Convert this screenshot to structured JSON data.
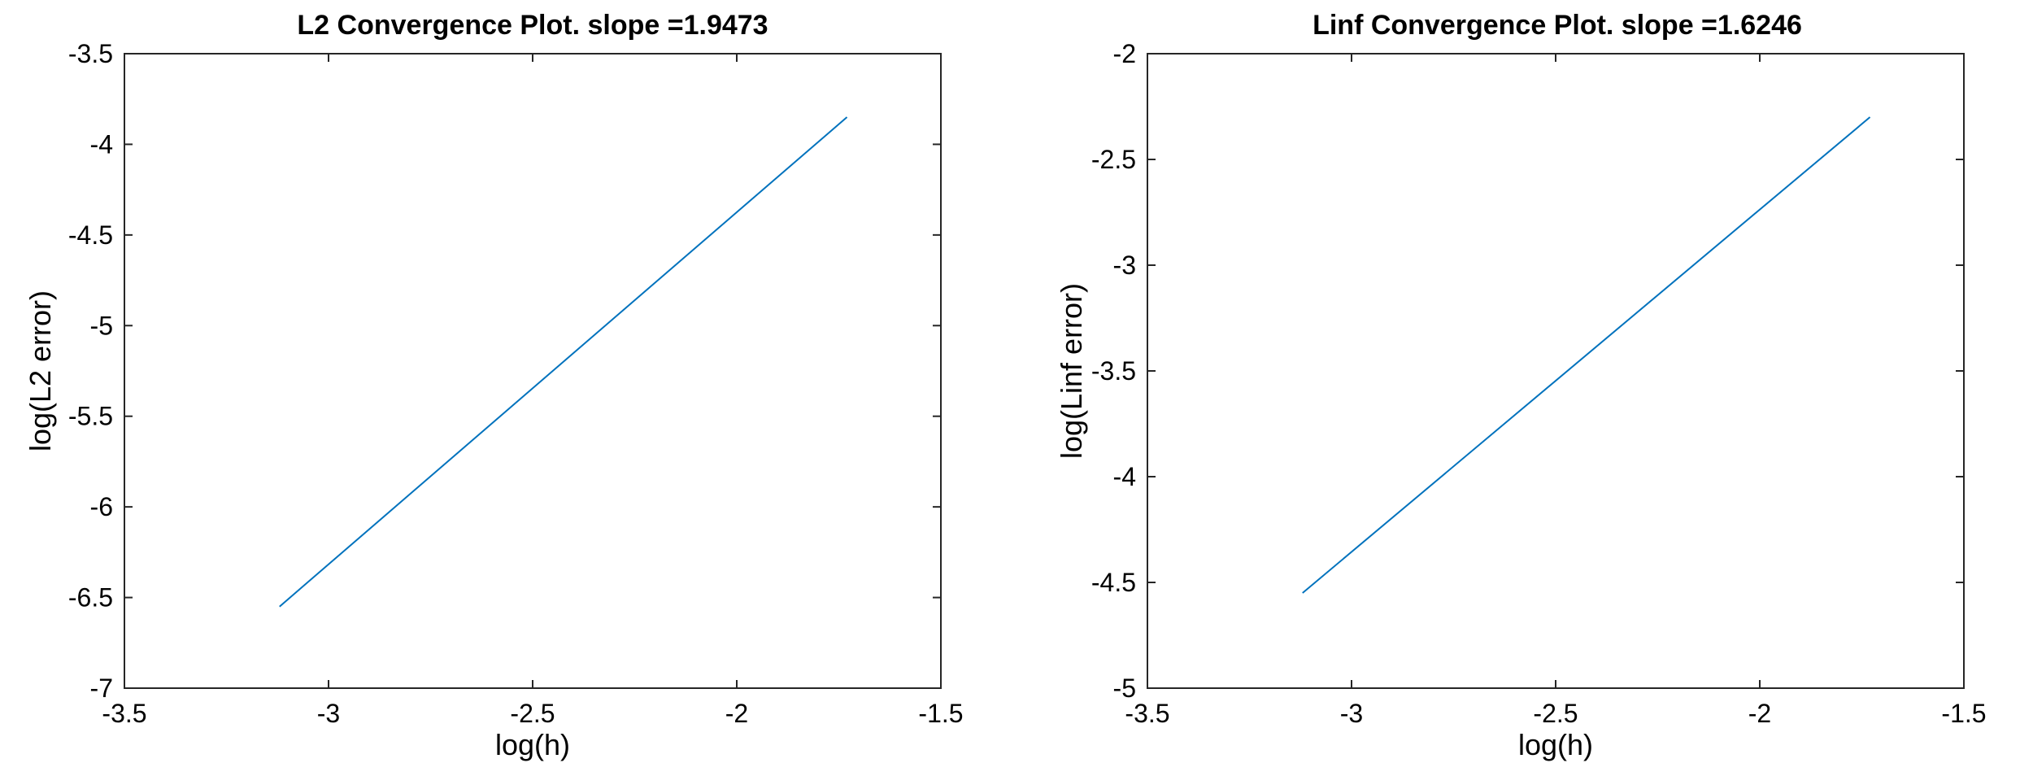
{
  "chart_data": [
    {
      "type": "line",
      "title": "L2 Convergence Plot. slope =1.9473",
      "xlabel": "log(h)",
      "ylabel": "log(L2 error)",
      "xlim": [
        -3.5,
        -1.5
      ],
      "ylim": [
        -7,
        -3.5
      ],
      "xticks": [
        -3.5,
        -3,
        -2.5,
        -2,
        -1.5
      ],
      "xtick_labels": [
        "-3.5",
        "-3",
        "-2.5",
        "-2",
        "-1.5"
      ],
      "yticks": [
        -7,
        -6.5,
        -6,
        -5.5,
        -5,
        -4.5,
        -4,
        -3.5
      ],
      "ytick_labels": [
        "-7",
        "-6.5",
        "-6",
        "-5.5",
        "-5",
        "-4.5",
        "-4",
        "-3.5"
      ],
      "grid": false,
      "series": [
        {
          "name": "L2 error",
          "color": "#0072BD",
          "x": [
            -3.12,
            -1.73
          ],
          "y": [
            -6.55,
            -3.85
          ]
        }
      ]
    },
    {
      "type": "line",
      "title": "Linf Convergence Plot. slope =1.6246",
      "xlabel": "log(h)",
      "ylabel": "log(Linf error)",
      "xlim": [
        -3.5,
        -1.5
      ],
      "ylim": [
        -5,
        -2
      ],
      "xticks": [
        -3.5,
        -3,
        -2.5,
        -2,
        -1.5
      ],
      "xtick_labels": [
        "-3.5",
        "-3",
        "-2.5",
        "-2",
        "-1.5"
      ],
      "yticks": [
        -5,
        -4.5,
        -4,
        -3.5,
        -3,
        -2.5,
        -2
      ],
      "ytick_labels": [
        "-5",
        "-4.5",
        "-4",
        "-3.5",
        "-3",
        "-2.5",
        "-2"
      ],
      "grid": false,
      "series": [
        {
          "name": "Linf error",
          "color": "#0072BD",
          "x": [
            -3.12,
            -1.73
          ],
          "y": [
            -4.55,
            -2.3
          ]
        }
      ]
    }
  ]
}
